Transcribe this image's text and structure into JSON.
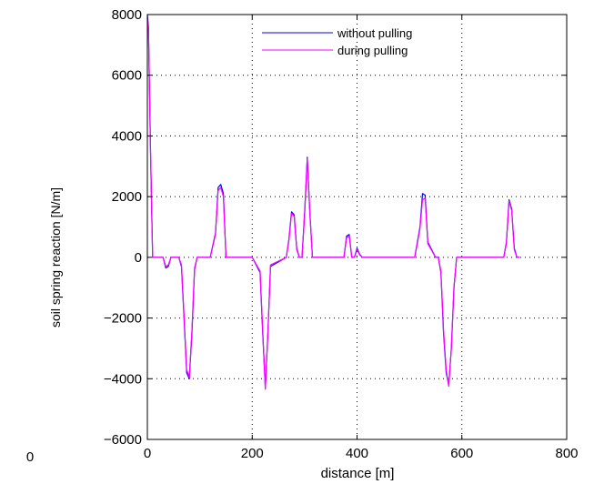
{
  "chart_data": {
    "type": "line",
    "title": "",
    "xlabel": "distance [m]",
    "ylabel": "soil spring reaction [N/m]",
    "xlim": [
      0,
      800
    ],
    "ylim": [
      -6000,
      8000
    ],
    "xticks": [
      0,
      200,
      400,
      600,
      800
    ],
    "yticks": [
      -6000,
      -4000,
      -2000,
      0,
      2000,
      4000,
      6000,
      8000
    ],
    "xtick_labels": [
      "0",
      "200",
      "400",
      "600",
      "800"
    ],
    "ytick_labels": [
      "−6000",
      "−4000",
      "−2000",
      "0",
      "2000",
      "4000",
      "6000",
      "8000"
    ],
    "stray_label": "0",
    "grid": true,
    "grid_style": "dotted",
    "legend_position": "top-center",
    "series": [
      {
        "name": "without pulling",
        "color": "#0000ff",
        "x": [
          0,
          2,
          6,
          10,
          30,
          35,
          40,
          45,
          60,
          65,
          70,
          75,
          80,
          85,
          90,
          95,
          120,
          130,
          135,
          140,
          145,
          150,
          195,
          200,
          215,
          220,
          225,
          230,
          235,
          265,
          270,
          275,
          280,
          285,
          290,
          295,
          300,
          305,
          310,
          315,
          320,
          370,
          375,
          380,
          385,
          390,
          395,
          400,
          405,
          410,
          420,
          430,
          440,
          500,
          510,
          515,
          520,
          525,
          530,
          535,
          550,
          555,
          560,
          565,
          570,
          575,
          580,
          585,
          590,
          670,
          680,
          685,
          690,
          695,
          700,
          705,
          710
        ],
        "y": [
          8000,
          7600,
          3500,
          0,
          0,
          -350,
          -300,
          0,
          0,
          -300,
          -2000,
          -3800,
          -4000,
          -2500,
          -400,
          0,
          0,
          800,
          2300,
          2400,
          2100,
          0,
          0,
          0,
          -500,
          -2500,
          -4300,
          -2500,
          -300,
          0,
          600,
          1500,
          1400,
          300,
          0,
          0,
          1500,
          3300,
          1500,
          0,
          0,
          0,
          0,
          700,
          750,
          0,
          0,
          300,
          100,
          0,
          0,
          0,
          0,
          0,
          0,
          500,
          1000,
          2100,
          2050,
          500,
          0,
          0,
          -500,
          -2500,
          -3800,
          -4200,
          -3000,
          -1000,
          0,
          0,
          0,
          500,
          1900,
          1600,
          300,
          0,
          0
        ]
      },
      {
        "name": "during pulling",
        "color": "#ff00ff",
        "x": [
          0,
          2,
          6,
          10,
          30,
          35,
          40,
          45,
          60,
          65,
          70,
          75,
          80,
          85,
          90,
          95,
          120,
          130,
          135,
          140,
          145,
          150,
          195,
          200,
          215,
          220,
          225,
          230,
          235,
          265,
          270,
          275,
          280,
          285,
          290,
          295,
          300,
          305,
          310,
          315,
          320,
          370,
          375,
          380,
          385,
          390,
          395,
          400,
          405,
          410,
          420,
          430,
          440,
          500,
          510,
          515,
          520,
          525,
          530,
          535,
          550,
          555,
          560,
          565,
          570,
          575,
          580,
          585,
          590,
          670,
          680,
          685,
          690,
          695,
          700,
          705,
          710
        ],
        "y": [
          7900,
          7500,
          3400,
          0,
          0,
          -300,
          -250,
          0,
          0,
          -250,
          -1900,
          -3700,
          -3950,
          -2400,
          -350,
          0,
          0,
          750,
          2200,
          2300,
          2000,
          0,
          0,
          0,
          -450,
          -2400,
          -4350,
          -2450,
          -250,
          0,
          550,
          1450,
          1350,
          250,
          0,
          0,
          1400,
          3250,
          1450,
          0,
          0,
          0,
          0,
          650,
          700,
          0,
          0,
          250,
          80,
          0,
          0,
          0,
          0,
          0,
          0,
          450,
          950,
          1900,
          1950,
          450,
          0,
          0,
          -450,
          -2400,
          -3700,
          -4250,
          -2950,
          -950,
          0,
          0,
          0,
          450,
          1850,
          1550,
          250,
          0,
          0
        ]
      }
    ]
  }
}
